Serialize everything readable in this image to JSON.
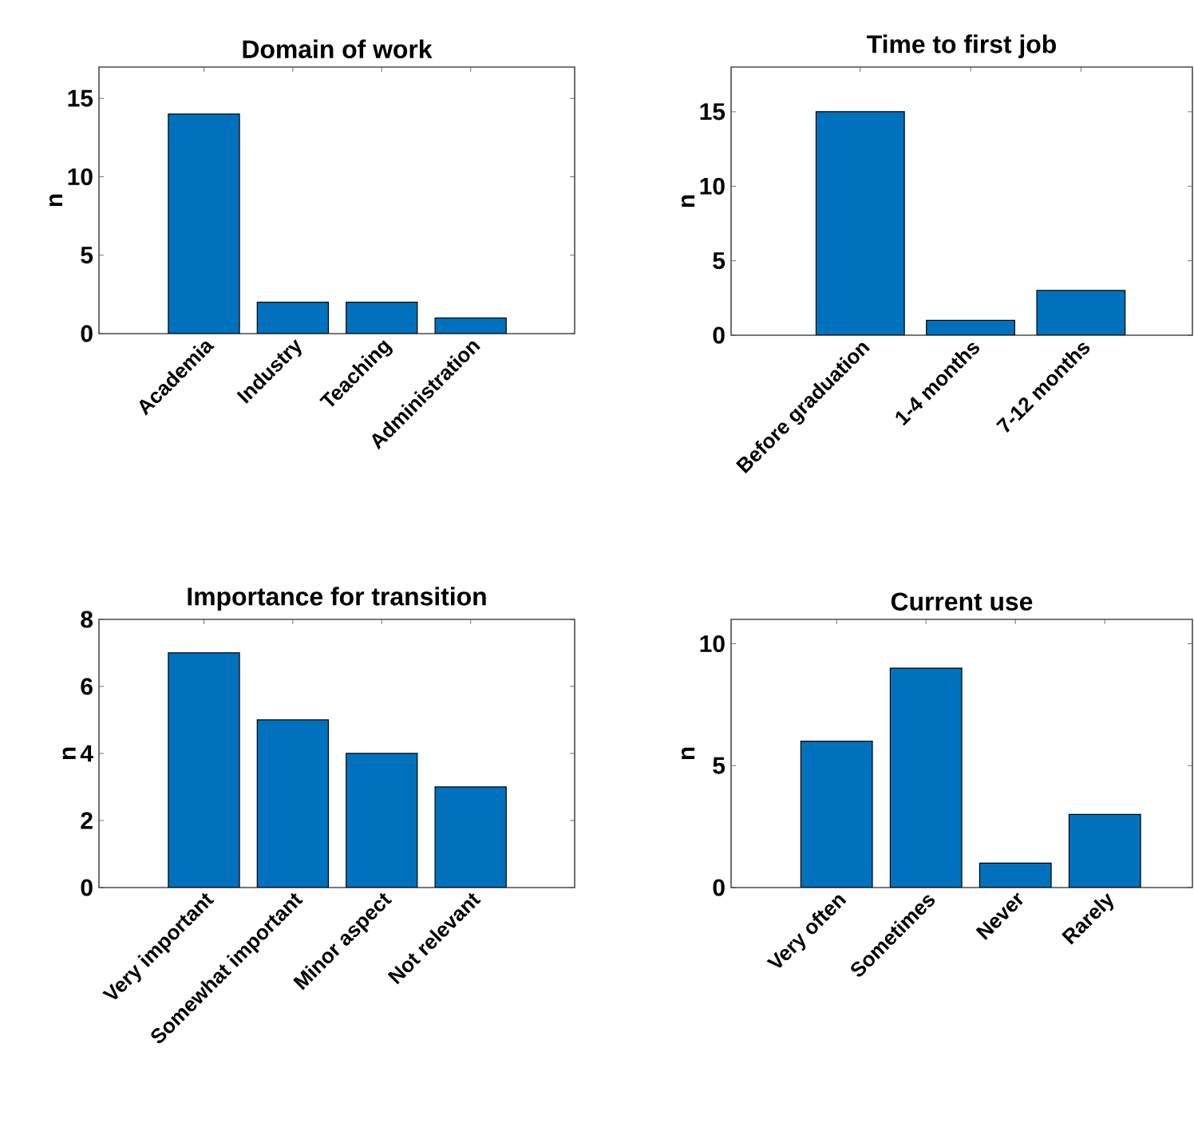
{
  "chart_data": [
    {
      "type": "bar",
      "title": "Domain of work",
      "ylabel": "n",
      "categories": [
        "Academia",
        "Industry",
        "Teaching",
        "Administration"
      ],
      "values": [
        14,
        2,
        2,
        1
      ],
      "color": "#0072bd",
      "ylim": [
        0,
        17
      ],
      "yticks": [
        0,
        5,
        10,
        15
      ]
    },
    {
      "type": "bar",
      "title": "Time to first job",
      "ylabel": "n",
      "categories": [
        "Before graduation",
        "1-4 months",
        "7-12 months"
      ],
      "values": [
        15,
        1,
        3
      ],
      "color": "#0072bd",
      "ylim": [
        0,
        18
      ],
      "yticks": [
        0,
        5,
        10,
        15
      ]
    },
    {
      "type": "bar",
      "title": "Importance for transition",
      "ylabel": "n",
      "categories": [
        "Very important",
        "Somewhat important",
        "Minor aspect",
        "Not relevant"
      ],
      "values": [
        7,
        5,
        4,
        3
      ],
      "color": "#0072bd",
      "ylim": [
        0,
        8
      ],
      "yticks": [
        0,
        2,
        4,
        6,
        8
      ]
    },
    {
      "type": "bar",
      "title": "Current use",
      "ylabel": "n",
      "categories": [
        "Very often",
        "Sometimes",
        "Never",
        "Rarely"
      ],
      "values": [
        6,
        9,
        1,
        3
      ],
      "color": "#0072bd",
      "ylim": [
        0,
        11
      ],
      "yticks": [
        0,
        5,
        10
      ]
    }
  ]
}
